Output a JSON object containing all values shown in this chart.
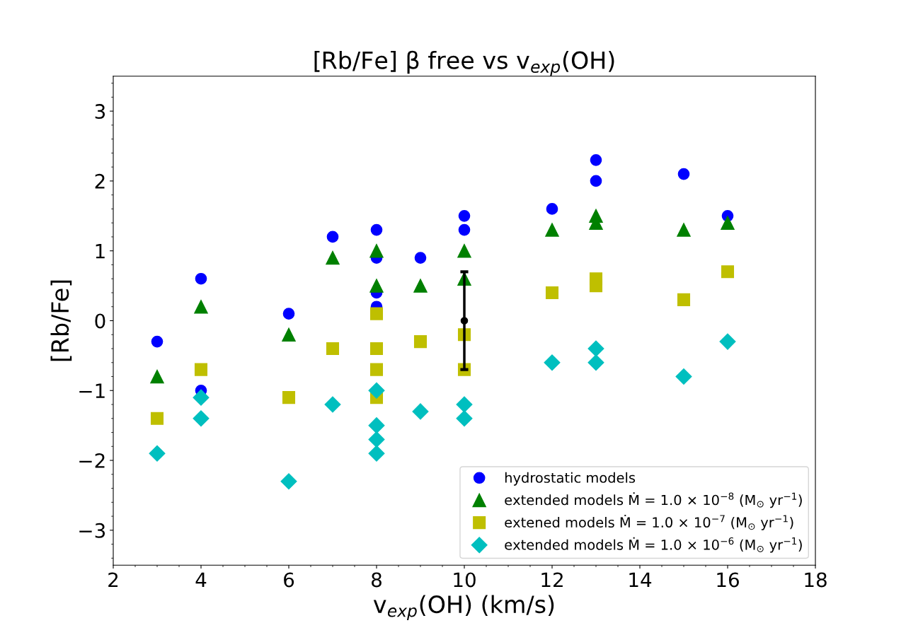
{
  "chart_data": {
    "type": "scatter",
    "title": "[Rb/Fe] β free vs v$_{exp}$(OH)",
    "xlabel": "v$_{exp}$(OH) (km/s)",
    "ylabel": "[Rb/Fe]",
    "xlim": [
      2,
      18
    ],
    "xticks": [
      2,
      4,
      6,
      8,
      10,
      12,
      14,
      16,
      18
    ],
    "ylim": [
      -3.5,
      3.5
    ],
    "yticks": [
      -3,
      -2,
      -1,
      0,
      1,
      2,
      3
    ],
    "grid": false,
    "legend": "bottom right",
    "series": [
      {
        "name": "hydrostatic models",
        "color": "#0000ff",
        "marker": "circle",
        "x": [
          3,
          4,
          4,
          6,
          7,
          8,
          8,
          8,
          8,
          9,
          10,
          10,
          12,
          13,
          13,
          15,
          16
        ],
        "values": [
          -0.3,
          0.6,
          -1.0,
          0.1,
          1.2,
          1.3,
          0.9,
          0.4,
          0.2,
          0.9,
          1.5,
          1.3,
          1.6,
          2.3,
          2.0,
          2.1,
          1.5
        ]
      },
      {
        "name": "extended models Ṁ = 1.0 × 10$^{−8}$ (M$_{⊙}$ yr$^{−1}$)",
        "color": "#008000",
        "marker": "triangle",
        "x": [
          3,
          4,
          6,
          7,
          8,
          8,
          9,
          10,
          10,
          12,
          13,
          13,
          15,
          16
        ],
        "values": [
          -0.8,
          0.2,
          -0.2,
          0.9,
          1.0,
          0.5,
          0.5,
          1.0,
          0.6,
          1.3,
          1.5,
          1.4,
          1.3,
          1.4
        ]
      },
      {
        "name": "extened models Ṁ = 1.0 × 10$^{−7}$ (M$_{⊙}$ yr$^{−1}$)",
        "color": "#bfbf00",
        "marker": "square",
        "x": [
          3,
          4,
          6,
          7,
          8,
          8,
          8,
          8,
          9,
          10,
          10,
          12,
          13,
          13,
          15,
          16
        ],
        "values": [
          -1.4,
          -0.7,
          -1.1,
          -0.4,
          0.1,
          -0.4,
          -0.7,
          -1.1,
          -0.3,
          -0.2,
          -0.7,
          0.4,
          0.6,
          0.5,
          0.3,
          0.7
        ]
      },
      {
        "name": "extended models Ṁ = 1.0 × 10$^{−6}$ (M$_{⊙}$ yr$^{−1}$)",
        "color": "#00bfbf",
        "marker": "diamond",
        "x": [
          3,
          4,
          4,
          6,
          7,
          8,
          8,
          8,
          8,
          9,
          10,
          10,
          12,
          13,
          13,
          15,
          16
        ],
        "values": [
          -1.9,
          -1.1,
          -1.4,
          -2.3,
          -1.2,
          -1.0,
          -1.5,
          -1.7,
          -1.9,
          -1.3,
          -1.2,
          -1.4,
          -0.6,
          -0.4,
          -0.6,
          -0.8,
          -0.3
        ]
      },
      {
        "color": "#000000",
        "marker": "circle",
        "x": [
          10
        ],
        "values": [
          0
        ],
        "errors": [
          0.7
        ]
      }
    ]
  }
}
